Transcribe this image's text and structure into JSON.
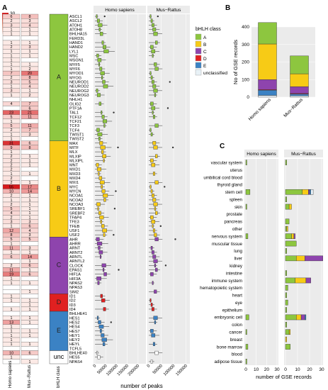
{
  "panel_labels": {
    "a": "A",
    "b": "B",
    "c": "C"
  },
  "heatmap_legend": {
    "ticks": [
      "30",
      "20",
      "10",
      "0"
    ]
  },
  "species": {
    "human": "Homo sapiens",
    "mouse_rat": "Mus−Rattus"
  },
  "class_col_label": "bHLH class",
  "box_xaxis": {
    "label": "number of peaks",
    "ticks": [
      "0",
      "50000",
      "100000",
      "150000",
      "200000"
    ]
  },
  "bhlh_classes": [
    {
      "name": "A",
      "color": "#8dc63f"
    },
    {
      "name": "B",
      "color": "#f7cb16"
    },
    {
      "name": "C",
      "color": "#8e44ad"
    },
    {
      "name": "D",
      "color": "#e02020"
    },
    {
      "name": "E",
      "color": "#3b82c4"
    },
    {
      "name": "unc",
      "color": "#ffffff"
    }
  ],
  "legend": {
    "title": "bHLH class",
    "items": [
      {
        "label": "A",
        "color": "#8dc63f"
      },
      {
        "label": "B",
        "color": "#f7cb16"
      },
      {
        "label": "C",
        "color": "#8e44ad"
      },
      {
        "label": "D",
        "color": "#e02020"
      },
      {
        "label": "E",
        "color": "#3b82c4"
      },
      {
        "label": "unclassified",
        "color": "#e8f1f6"
      }
    ]
  },
  "genes": [
    {
      "n": "ASCL1",
      "c": "A",
      "h": 6,
      "m": 8
    },
    {
      "n": "ASCL2",
      "c": "A",
      "h": 2,
      "m": 3
    },
    {
      "n": "ATOH1",
      "c": "A",
      "h": 3,
      "m": 4
    },
    {
      "n": "ATOH8",
      "c": "A",
      "h": 1,
      "m": 1
    },
    {
      "n": "BHLHA15",
      "c": "A",
      "h": 1,
      "m": 1
    },
    {
      "n": "FERD3L",
      "c": "A",
      "h": 0,
      "m": 0
    },
    {
      "n": "HAND1",
      "c": "A",
      "h": 1,
      "m": 1
    },
    {
      "n": "HAND2",
      "c": "A",
      "h": 2,
      "m": 3
    },
    {
      "n": "LYL1",
      "c": "A",
      "h": 1,
      "m": 1
    },
    {
      "n": "MSC",
      "c": "A",
      "h": 1,
      "m": 1
    },
    {
      "n": "MSGN1",
      "c": "A",
      "h": 1,
      "m": 0
    },
    {
      "n": "MYF5",
      "c": "A",
      "h": 1,
      "m": 1
    },
    {
      "n": "MYF6",
      "c": "A",
      "h": 1,
      "m": 2
    },
    {
      "n": "MYOD1",
      "c": "A",
      "h": 7,
      "m": 20
    },
    {
      "n": "MYOG",
      "c": "A",
      "h": 2,
      "m": 8
    },
    {
      "n": "NEUROD1",
      "c": "A",
      "h": 3,
      "m": 5
    },
    {
      "n": "NEUROD2",
      "c": "A",
      "h": 1,
      "m": 4
    },
    {
      "n": "NEUROG2",
      "c": "A",
      "h": 3,
      "m": 1
    },
    {
      "n": "NEUROG3",
      "c": "A",
      "h": 1,
      "m": 2
    },
    {
      "n": "NHLH1",
      "c": "A",
      "h": 0,
      "m": 0
    },
    {
      "n": "OLIG2",
      "c": "A",
      "h": 4,
      "m": 7
    },
    {
      "n": "PTF1A",
      "c": "A",
      "h": 0,
      "m": 6
    },
    {
      "n": "TAL1",
      "c": "A",
      "h": 23,
      "m": 21
    },
    {
      "n": "TCF12",
      "c": "A",
      "h": 5,
      "m": 11
    },
    {
      "n": "TCF21",
      "c": "A",
      "h": 1,
      "m": 0
    },
    {
      "n": "TCF3",
      "c": "A",
      "h": 5,
      "m": 11
    },
    {
      "n": "TCF4",
      "c": "A",
      "h": 2,
      "m": 7
    },
    {
      "n": "TWIST1",
      "c": "A",
      "h": 1,
      "m": 3
    },
    {
      "n": "TWIST2",
      "c": "A",
      "h": 1,
      "m": 0
    },
    {
      "n": "MAX",
      "c": "B",
      "h": 31,
      "m": 6
    },
    {
      "n": "MITF",
      "c": "B",
      "h": 9,
      "m": 8
    },
    {
      "n": "MLX",
      "c": "B",
      "h": 1,
      "m": 0
    },
    {
      "n": "MLXIP",
      "c": "B",
      "h": 2,
      "m": 1
    },
    {
      "n": "MLXIPL",
      "c": "B",
      "h": 2,
      "m": 1
    },
    {
      "n": "MNT",
      "c": "B",
      "h": 2,
      "m": 1
    },
    {
      "n": "MXD1",
      "c": "B",
      "h": 2,
      "m": 0
    },
    {
      "n": "MXD3",
      "c": "B",
      "h": 1,
      "m": 1
    },
    {
      "n": "MXD4",
      "c": "B",
      "h": 2,
      "m": 0
    },
    {
      "n": "MXI1",
      "c": "B",
      "h": 2,
      "m": 1
    },
    {
      "n": "MYC",
      "c": "B",
      "h": 55,
      "m": 17
    },
    {
      "n": "MYCN",
      "c": "B",
      "h": 10,
      "m": 14
    },
    {
      "n": "NCOA1",
      "c": "B",
      "h": 2,
      "m": 1
    },
    {
      "n": "NCOA2",
      "c": "B",
      "h": 1,
      "m": 1
    },
    {
      "n": "NCOA3",
      "c": "B",
      "h": 2,
      "m": 1
    },
    {
      "n": "SREBF1",
      "c": "B",
      "h": 5,
      "m": 1
    },
    {
      "n": "SREBF2",
      "c": "B",
      "h": 4,
      "m": 1
    },
    {
      "n": "TFAP4",
      "c": "B",
      "h": 2,
      "m": 1
    },
    {
      "n": "TFE3",
      "c": "B",
      "h": 3,
      "m": 3
    },
    {
      "n": "TFEB",
      "c": "B",
      "h": 1,
      "m": 6
    },
    {
      "n": "USF1",
      "c": "B",
      "h": 12,
      "m": 4
    },
    {
      "n": "USF2",
      "c": "B",
      "h": 8,
      "m": 3
    },
    {
      "n": "AHR",
      "c": "C",
      "h": 5,
      "m": 5
    },
    {
      "n": "AHRR",
      "c": "C",
      "h": 1,
      "m": 0
    },
    {
      "n": "ARNT",
      "c": "C",
      "h": 11,
      "m": 3
    },
    {
      "n": "ARNT2",
      "c": "C",
      "h": 1,
      "m": 1
    },
    {
      "n": "ARNTL",
      "c": "C",
      "h": 6,
      "m": 14
    },
    {
      "n": "ARNTL2",
      "c": "C",
      "h": 0,
      "m": 1
    },
    {
      "n": "CLOCK",
      "c": "C",
      "h": 2,
      "m": 6
    },
    {
      "n": "EPAS1",
      "c": "C",
      "h": 11,
      "m": 1
    },
    {
      "n": "HIF1A",
      "c": "C",
      "h": 19,
      "m": 6
    },
    {
      "n": "HIF3A",
      "c": "C",
      "h": 1,
      "m": 0
    },
    {
      "n": "NPAS2",
      "c": "C",
      "h": 1,
      "m": 1
    },
    {
      "n": "NPAS3",
      "c": "C",
      "h": 0,
      "m": 0
    },
    {
      "n": "SIM2",
      "c": "C",
      "h": 0,
      "m": 1
    },
    {
      "n": "ID1",
      "c": "D",
      "h": 1,
      "m": 0
    },
    {
      "n": "ID2",
      "c": "D",
      "h": 1,
      "m": 1
    },
    {
      "n": "ID3",
      "c": "D",
      "h": 0,
      "m": 1
    },
    {
      "n": "ID4",
      "c": "D",
      "h": 1,
      "m": 1
    },
    {
      "n": "BHLHE41",
      "c": "E",
      "h": 0,
      "m": 0
    },
    {
      "n": "HES1",
      "c": "E",
      "h": 1,
      "m": 1
    },
    {
      "n": "HES2",
      "c": "E",
      "h": 13,
      "m": 1
    },
    {
      "n": "HES4",
      "c": "E",
      "h": 1,
      "m": 0
    },
    {
      "n": "HES7",
      "c": "E",
      "h": 1,
      "m": 1
    },
    {
      "n": "HEY1",
      "c": "E",
      "h": 1,
      "m": 1
    },
    {
      "n": "HEY2",
      "c": "E",
      "h": 1,
      "m": 0
    },
    {
      "n": "HEYL",
      "c": "E",
      "h": 1,
      "m": 1
    },
    {
      "n": "TCFL5",
      "c": "E",
      "h": 0,
      "m": 0
    },
    {
      "n": "BHLHE40",
      "c": "unc",
      "h": 10,
      "m": 6
    },
    {
      "n": "HES5",
      "c": "unc",
      "h": 1,
      "m": 0
    },
    {
      "n": "NPAS4",
      "c": "unc",
      "h": 0,
      "m": 1
    }
  ],
  "chart_data": [
    {
      "panel": "B",
      "type": "bar",
      "stacked": true,
      "ylabel": "No of GSE records",
      "ylim": [
        0,
        400
      ],
      "yticks": [
        0,
        100,
        200,
        300,
        400
      ],
      "categories": [
        "Homo sapiens",
        "Mus−Rattus"
      ],
      "series": [
        {
          "name": "unclassified",
          "color": "#e8f1f6",
          "values": [
            10,
            8
          ]
        },
        {
          "name": "E",
          "color": "#3b82c4",
          "values": [
            30,
            10
          ]
        },
        {
          "name": "D",
          "color": "#e02020",
          "values": [
            3,
            3
          ]
        },
        {
          "name": "C",
          "color": "#8e44ad",
          "values": [
            57,
            39
          ]
        },
        {
          "name": "B",
          "color": "#f7cb16",
          "values": [
            203,
            73
          ]
        },
        {
          "name": "A",
          "color": "#8dc63f",
          "values": [
            122,
            102
          ]
        }
      ]
    },
    {
      "panel": "C",
      "type": "bar",
      "stacked": true,
      "orientation": "horizontal",
      "xlabel": "number of GSE records",
      "xlim": [
        0,
        30
      ],
      "xticks": [
        0,
        10,
        20,
        30
      ],
      "facets": [
        "Homo sapiens",
        "Mus−Rattus"
      ],
      "categories": [
        "vascular system",
        "uterus",
        "umbilical cord blood",
        "thyroid gland",
        "stem cell",
        "spleen",
        "skin",
        "prostate",
        "pancreas",
        "other",
        "nervous system",
        "muscular tissue",
        "lung",
        "liver",
        "kidney",
        "intestine",
        "immune system",
        "hematopoietic system",
        "heart",
        "eye",
        "epithelium",
        "embryonic cell",
        "colon",
        "cancer",
        "breast",
        "bone marrow",
        "blood",
        "adipose tissue"
      ],
      "series": [
        {
          "name": "A",
          "color": "#8dc63f",
          "human": [
            1,
            0,
            0,
            0,
            4,
            0,
            1,
            0,
            0,
            0,
            2,
            0,
            0,
            0,
            0,
            0,
            0,
            0,
            0,
            0,
            0,
            3,
            0,
            1,
            0,
            2,
            0,
            1
          ],
          "mouse": [
            1,
            0,
            0,
            0,
            14,
            1,
            3,
            0,
            3,
            1,
            5,
            9,
            1,
            9,
            0,
            1,
            8,
            2,
            1,
            2,
            1,
            9,
            1,
            3,
            0,
            4,
            0,
            0
          ]
        },
        {
          "name": "B",
          "color": "#f7cb16",
          "human": [
            0,
            0,
            0,
            0,
            0,
            0,
            0,
            0,
            0,
            0,
            0,
            0,
            0,
            0,
            0,
            0,
            0,
            0,
            0,
            0,
            0,
            0,
            0,
            0,
            0,
            0,
            0,
            0
          ],
          "mouse": [
            0,
            0,
            0,
            0,
            5,
            0,
            2,
            0,
            0,
            1,
            2,
            0,
            0,
            7,
            0,
            0,
            9,
            0,
            0,
            0,
            0,
            4,
            0,
            1,
            1,
            0,
            0,
            0
          ]
        },
        {
          "name": "C",
          "color": "#8e44ad",
          "human": [
            0,
            0,
            0,
            0,
            0,
            0,
            0,
            0,
            0,
            0,
            0,
            0,
            0,
            0,
            0,
            0,
            0,
            0,
            0,
            0,
            0,
            0,
            0,
            0,
            0,
            0,
            0,
            0
          ],
          "mouse": [
            0,
            0,
            0,
            0,
            1,
            0,
            0,
            0,
            0,
            0,
            1,
            0,
            0,
            15,
            0,
            0,
            4,
            0,
            0,
            0,
            0,
            3,
            0,
            0,
            0,
            0,
            0,
            0
          ]
        },
        {
          "name": "E",
          "color": "#3b82c4",
          "human": [
            0,
            0,
            0,
            0,
            0,
            0,
            0,
            0,
            0,
            0,
            0,
            0,
            0,
            0,
            0,
            0,
            0,
            0,
            0,
            0,
            0,
            0,
            0,
            0,
            0,
            0,
            0,
            0
          ],
          "mouse": [
            0,
            0,
            0,
            0,
            1,
            0,
            0,
            0,
            0,
            0,
            0,
            0,
            0,
            0,
            0,
            0,
            0,
            0,
            0,
            0,
            0,
            1,
            0,
            0,
            0,
            0,
            0,
            0
          ]
        },
        {
          "name": "unclassified",
          "color": "#e8f1f6",
          "human": [
            0,
            0,
            0,
            0,
            0,
            0,
            0,
            0,
            0,
            0,
            0,
            0,
            0,
            0,
            0,
            0,
            0,
            0,
            0,
            0,
            0,
            0,
            0,
            0,
            0,
            0,
            0,
            0
          ],
          "mouse": [
            0,
            0,
            0,
            0,
            2,
            0,
            0,
            0,
            0,
            0,
            0,
            0,
            0,
            0,
            0,
            0,
            0,
            0,
            0,
            0,
            0,
            0,
            0,
            0,
            0,
            0,
            0,
            0
          ]
        }
      ]
    }
  ]
}
